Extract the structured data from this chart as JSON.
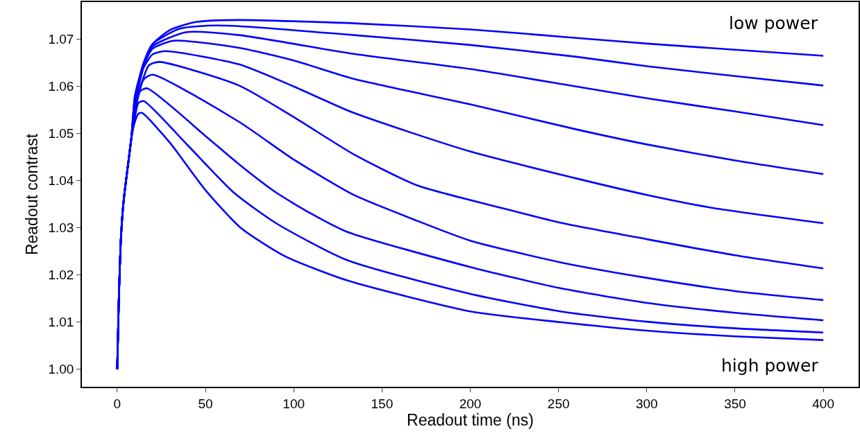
{
  "chart_data": {
    "type": "line",
    "xlabel": "Readout time (ns)",
    "ylabel": "Readout contrast",
    "xlim": [
      -20,
      420
    ],
    "ylim": [
      0.9963,
      1.0779
    ],
    "xticks": [
      0,
      50,
      100,
      150,
      200,
      250,
      300,
      350,
      400
    ],
    "yticks": [
      {
        "value": 1,
        "label": "1.00"
      },
      1.01,
      1.02,
      1.03,
      1.04,
      1.05,
      1.06,
      1.07
    ],
    "grid": false,
    "line_style": "solid",
    "annotations": [
      "low power",
      "high power"
    ],
    "series": [
      {
        "color": "#0000ff",
        "x": [
          0,
          1,
          2,
          3,
          4,
          6,
          8,
          10,
          15,
          20,
          30,
          45,
          69,
          134,
          200,
          260,
          300,
          350,
          400
        ],
        "values": [
          1.0,
          1.016,
          1.027,
          1.033,
          1.037,
          1.043,
          1.049,
          1.058,
          1.065,
          1.069,
          1.072,
          1.0737,
          1.0741,
          1.0734,
          1.0721,
          1.0703,
          1.0691,
          1.0678,
          1.0665
        ]
      },
      {
        "color": "#0000ff",
        "x": [
          0,
          1,
          2,
          3,
          4,
          6,
          8,
          10,
          15,
          20,
          35,
          51,
          69,
          134,
          200,
          260,
          300,
          350,
          400
        ],
        "values": [
          1.0,
          1.016,
          1.027,
          1.033,
          1.037,
          1.043,
          1.049,
          1.0575,
          1.065,
          1.069,
          1.0722,
          1.0729,
          1.0728,
          1.0709,
          1.0688,
          1.0663,
          1.0643,
          1.0622,
          1.0602
        ]
      },
      {
        "color": "#0000ff",
        "x": [
          0,
          1,
          2,
          3,
          4,
          6,
          8,
          10,
          15,
          20,
          39,
          69,
          134,
          200,
          260,
          300,
          350,
          400
        ],
        "values": [
          1.0,
          1.016,
          1.027,
          1.033,
          1.037,
          1.043,
          1.049,
          1.057,
          1.0648,
          1.0685,
          1.0715,
          1.0709,
          1.0669,
          1.0637,
          1.06,
          1.0575,
          1.0547,
          1.0518
        ]
      },
      {
        "color": "#0000ff",
        "x": [
          0,
          1,
          2,
          3,
          4,
          6,
          8,
          10,
          15,
          20,
          32,
          69,
          100,
          134,
          200,
          260,
          300,
          350,
          400
        ],
        "values": [
          1.0,
          1.016,
          1.027,
          1.033,
          1.037,
          1.043,
          1.049,
          1.0565,
          1.0645,
          1.068,
          1.0697,
          1.0682,
          1.0655,
          1.0616,
          1.0562,
          1.0509,
          1.0477,
          1.0443,
          1.0414
        ]
      },
      {
        "color": "#0000ff",
        "x": [
          0,
          1,
          2,
          3,
          4,
          6,
          8,
          10,
          15,
          20,
          27,
          69,
          100,
          134,
          200,
          260,
          300,
          338,
          400
        ],
        "values": [
          1.0,
          1.016,
          1.027,
          1.033,
          1.037,
          1.043,
          1.049,
          1.056,
          1.064,
          1.0668,
          1.0675,
          1.0647,
          1.06,
          1.0544,
          1.0462,
          1.0405,
          1.037,
          1.0342,
          1.031
        ]
      },
      {
        "color": "#0000ff",
        "x": [
          0,
          1,
          2,
          3,
          4,
          6,
          8,
          10,
          18,
          24,
          69,
          100,
          134,
          170,
          218,
          251,
          300,
          350,
          400
        ],
        "values": [
          1.0,
          1.016,
          1.027,
          1.033,
          1.037,
          1.043,
          1.049,
          1.0555,
          1.0645,
          1.0652,
          1.0602,
          1.0535,
          1.0456,
          1.039,
          1.0342,
          1.0311,
          1.0276,
          1.0242,
          1.0214
        ]
      },
      {
        "color": "#0000ff",
        "x": [
          0,
          1,
          2,
          3,
          4,
          6,
          8,
          10,
          15,
          20,
          69,
          100,
          134,
          170,
          200,
          251,
          300,
          350,
          400
        ],
        "values": [
          1.0,
          1.016,
          1.027,
          1.033,
          1.037,
          1.043,
          1.049,
          1.055,
          1.0615,
          1.0625,
          1.0525,
          1.0445,
          1.037,
          1.0315,
          1.0273,
          1.0227,
          1.0194,
          1.0166,
          1.0147
        ]
      },
      {
        "color": "#0000ff",
        "x": [
          0,
          1,
          2,
          3,
          4,
          6,
          8,
          10,
          13,
          17,
          50,
          69,
          90,
          110,
          130,
          200,
          251,
          300,
          350,
          400
        ],
        "values": [
          1.0,
          1.016,
          1.027,
          1.033,
          1.037,
          1.043,
          1.049,
          1.0545,
          1.059,
          1.0596,
          1.0495,
          1.0435,
          1.0375,
          1.033,
          1.0292,
          1.0217,
          1.0172,
          1.0141,
          1.012,
          1.0104
        ]
      },
      {
        "color": "#0000ff",
        "x": [
          0,
          1,
          2,
          3,
          4,
          6,
          8,
          10,
          12,
          15,
          40,
          66,
          90,
          130,
          200,
          251,
          300,
          350,
          400
        ],
        "values": [
          1.0,
          1.016,
          1.027,
          1.033,
          1.037,
          1.043,
          1.049,
          1.0535,
          1.0565,
          1.0569,
          1.0475,
          1.0375,
          1.031,
          1.0232,
          1.016,
          1.0123,
          1.0101,
          1.0087,
          1.0078
        ]
      },
      {
        "color": "#0000ff",
        "x": [
          0,
          1,
          2,
          3,
          4,
          6,
          8,
          10,
          12,
          14,
          30,
          50,
          70,
          95,
          130,
          200,
          251,
          300,
          350,
          400
        ],
        "values": [
          1.0,
          1.016,
          1.027,
          1.033,
          1.037,
          1.043,
          1.049,
          1.0525,
          1.0542,
          1.0544,
          1.048,
          1.038,
          1.03,
          1.024,
          1.0189,
          1.0123,
          1.01,
          1.0082,
          1.007,
          1.0062
        ]
      }
    ]
  }
}
